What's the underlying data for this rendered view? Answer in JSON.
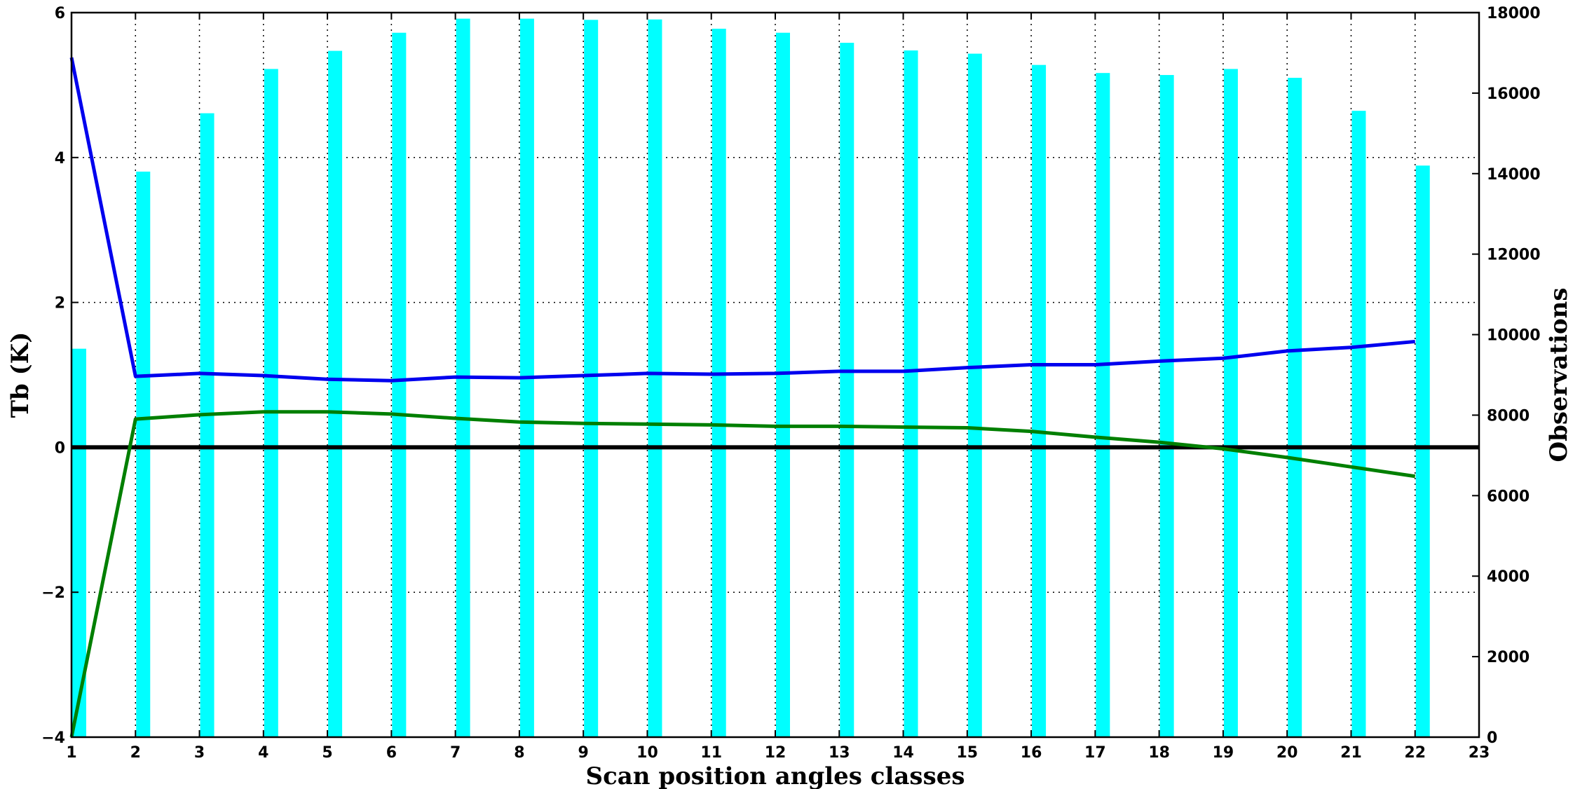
{
  "chart_data": {
    "type": "bar+line",
    "title": "",
    "xlabel": "Scan position angles classes",
    "ylabel_left": "Tb (K)",
    "ylabel_right": "Observations",
    "xlim": [
      1,
      23
    ],
    "ylim_left": [
      -4,
      6
    ],
    "ylim_right": [
      0,
      18000
    ],
    "x_ticks": [
      1,
      2,
      3,
      4,
      5,
      6,
      7,
      8,
      9,
      10,
      11,
      12,
      13,
      14,
      15,
      16,
      17,
      18,
      19,
      20,
      21,
      22,
      23
    ],
    "y_left_ticks": [
      -4,
      -2,
      0,
      2,
      4,
      6
    ],
    "y_left_tick_labels": [
      "−4",
      "−2",
      "0",
      "2",
      "4",
      "6"
    ],
    "y_right_ticks": [
      0,
      2000,
      4000,
      6000,
      8000,
      10000,
      12000,
      14000,
      16000,
      18000
    ],
    "y_right_tick_labels": [
      "0",
      "2000",
      "4000",
      "6000",
      "8000",
      "10000",
      "12000",
      "14000",
      "16000",
      "18000"
    ],
    "grid": true,
    "zero_line": true,
    "bars": {
      "axis": "right",
      "color": "#00ffff",
      "x": [
        1,
        2,
        3,
        4,
        5,
        6,
        7,
        8,
        9,
        10,
        11,
        12,
        13,
        14,
        15,
        16,
        17,
        18,
        19,
        20,
        21,
        22
      ],
      "values": [
        9650,
        14050,
        15500,
        16600,
        17050,
        17500,
        17850,
        17850,
        17820,
        17830,
        17600,
        17500,
        17250,
        17060,
        16980,
        16700,
        16500,
        16450,
        16600,
        16380,
        15560,
        14200
      ]
    },
    "series": [
      {
        "axis": "left",
        "color": "#0000ee",
        "x": [
          1,
          2,
          3,
          4,
          5,
          6,
          7,
          8,
          9,
          10,
          11,
          12,
          13,
          14,
          15,
          16,
          17,
          18,
          19,
          20,
          21,
          22
        ],
        "values": [
          5.38,
          0.98,
          1.02,
          0.99,
          0.94,
          0.92,
          0.97,
          0.96,
          0.99,
          1.02,
          1.01,
          1.02,
          1.05,
          1.05,
          1.1,
          1.14,
          1.14,
          1.19,
          1.23,
          1.33,
          1.38,
          1.46
        ]
      },
      {
        "axis": "left",
        "color": "#007f00",
        "x": [
          1,
          2,
          3,
          4,
          5,
          6,
          7,
          8,
          9,
          10,
          11,
          12,
          13,
          14,
          15,
          16,
          17,
          18,
          19,
          20,
          21,
          22
        ],
        "values": [
          -4.0,
          0.39,
          0.45,
          0.49,
          0.49,
          0.46,
          0.4,
          0.35,
          0.33,
          0.32,
          0.31,
          0.29,
          0.29,
          0.28,
          0.27,
          0.22,
          0.14,
          0.07,
          -0.02,
          -0.14,
          -0.27,
          -0.4
        ]
      }
    ]
  }
}
